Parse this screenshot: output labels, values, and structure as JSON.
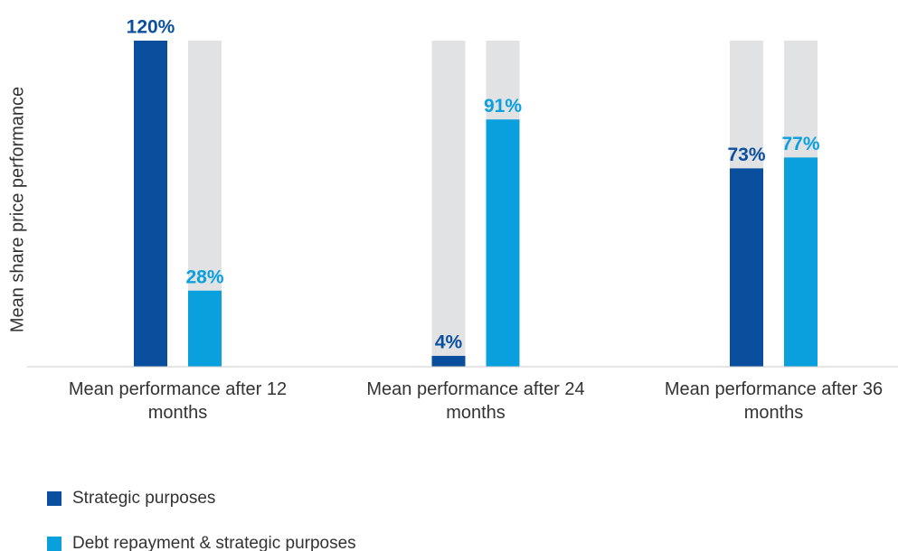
{
  "chart_data": {
    "type": "bar",
    "y_label": "Mean share price performance",
    "categories": [
      "Mean performance after 12 months",
      "Mean performance after 24 months",
      "Mean performance after 36 months"
    ],
    "series": [
      {
        "name": "Strategic purposes",
        "color": "#0a4f9e",
        "values": [
          120,
          4,
          73
        ],
        "value_labels": [
          "120%",
          "4%",
          "73%"
        ]
      },
      {
        "name": "Debt repayment & strategic purposes",
        "color": "#0aa0dd",
        "values": [
          28,
          91,
          77
        ],
        "value_labels": [
          "28%",
          "91%",
          "77%"
        ]
      }
    ],
    "ylim": [
      0,
      120
    ],
    "track_color": "#e1e2e4"
  }
}
